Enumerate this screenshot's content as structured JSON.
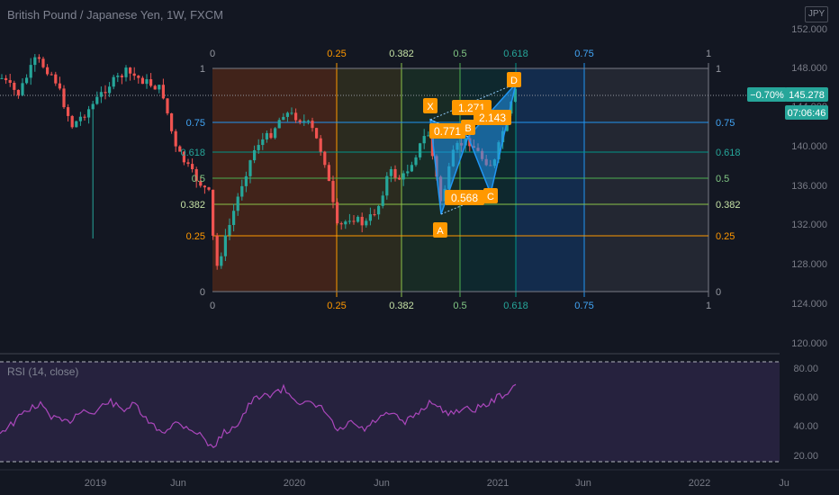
{
  "header": {
    "symbol_title": "British Pound / Japanese Yen, 1W, FXCM",
    "currency": "JPY"
  },
  "price_axis": {
    "labels": [
      "152.000",
      "148.000",
      "144.000",
      "140.000",
      "136.000",
      "132.000",
      "128.000",
      "124.000",
      "120.000"
    ],
    "price_tag": "145.278",
    "change_tag": "−0.70%",
    "countdown": "07:06:46"
  },
  "fib_time": {
    "top_labels": [
      "0",
      "0.25",
      "0.382",
      "0.5",
      "0.618",
      "0.75",
      "1"
    ],
    "bottom_labels": [
      "0",
      "0.25",
      "0.382",
      "0.5",
      "0.618",
      "0.75",
      "1"
    ]
  },
  "fib_price": {
    "left_labels": [
      "1",
      "0.75",
      "0.618",
      "0.5",
      "0.382",
      "0.25",
      "0"
    ],
    "right_labels": [
      "1",
      "0.75",
      "0.618",
      "0.5",
      "0.382",
      "0.25",
      "0"
    ]
  },
  "pattern": {
    "points": [
      "X",
      "A",
      "B",
      "C",
      "D"
    ],
    "ratios": [
      "1.271",
      "0.771",
      "2.143",
      "0.568"
    ]
  },
  "rsi": {
    "label": "RSI (14, close)",
    "axis_labels": [
      "80.00",
      "60.00",
      "40.00",
      "20.00"
    ]
  },
  "time_axis": {
    "labels": [
      "2019",
      "Jun",
      "2020",
      "Jun",
      "2021",
      "Jun",
      "2022",
      "Ju"
    ]
  },
  "colors": {
    "background": "#131722",
    "up": "#26a69a",
    "down": "#ef5350",
    "pattern": "#ff9800",
    "rsi_line": "#7e57c2"
  }
}
